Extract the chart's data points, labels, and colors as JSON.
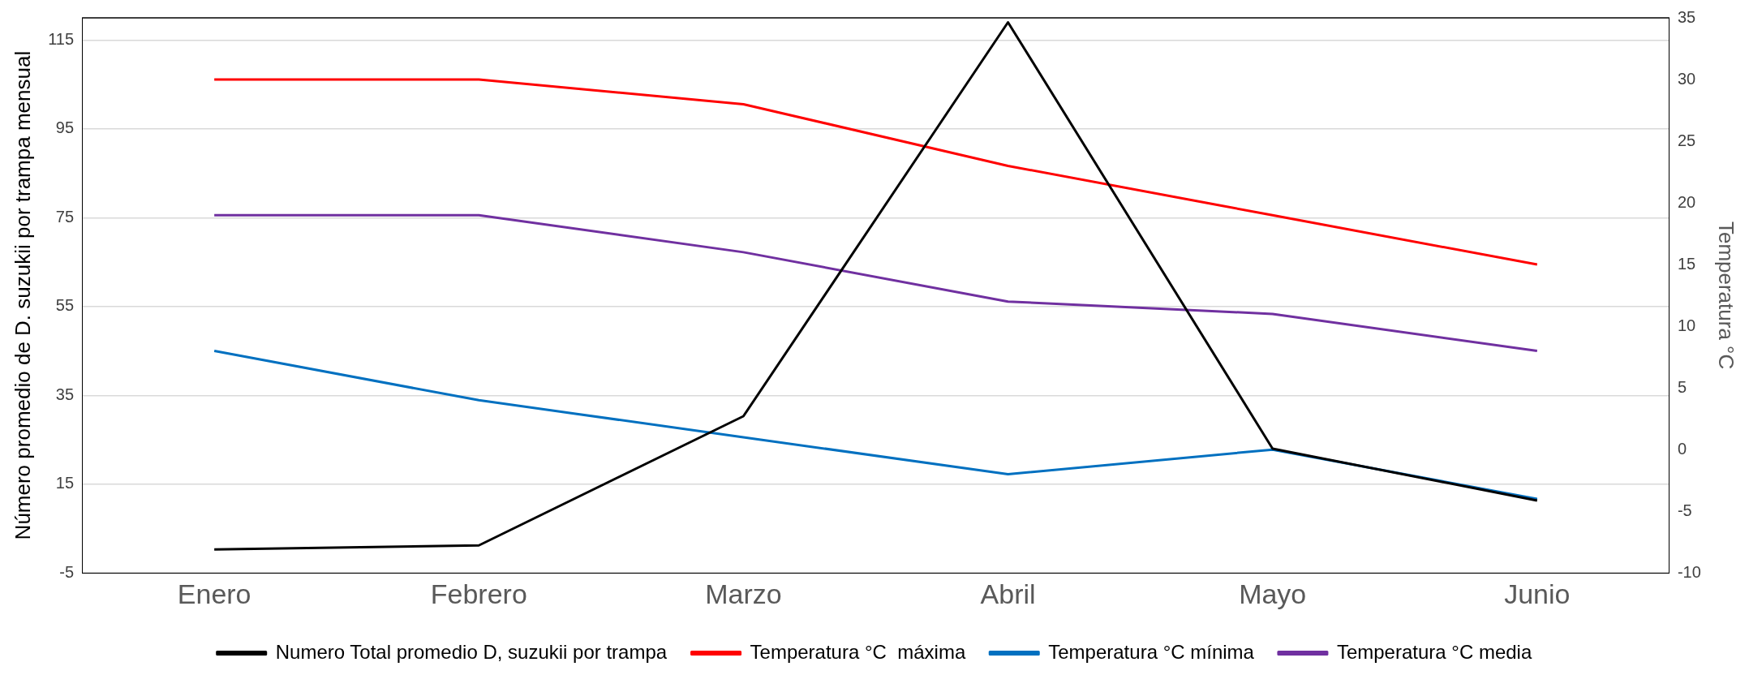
{
  "chart_data": {
    "type": "line",
    "categories": [
      "Enero",
      "Febrero",
      "Marzo",
      "Abril",
      "Mayo",
      "Junio"
    ],
    "ylabel": "Número promedio de D. suzukii por trampa mensual",
    "y2label": "Temperatura °C",
    "ylim": [
      -5,
      120
    ],
    "yticks": [
      -5,
      15,
      35,
      55,
      75,
      95,
      115
    ],
    "y2lim": [
      -10,
      35
    ],
    "y2ticks": [
      -10,
      -5,
      0,
      5,
      10,
      15,
      20,
      25,
      30,
      35
    ],
    "grid": "y",
    "legend": "bottom",
    "marker": "none",
    "line_style": "solid",
    "series": [
      {
        "name": "Numero Total promedio D, suzukii por trampa",
        "color": "#000000",
        "values": [
          0.3,
          1.2,
          30.3,
          119,
          23,
          11.3
        ]
      },
      {
        "name": "Temperatura °C  máxima",
        "color": "#ff0000",
        "axis": "y2",
        "values": [
          30,
          30,
          28,
          23,
          19,
          15
        ]
      },
      {
        "name": "Temperatura °C mínima",
        "color": "#0070c0",
        "axis": "y2",
        "values": [
          8,
          4,
          1,
          -2,
          0,
          -4
        ]
      },
      {
        "name": "Temperatura °C media",
        "color": "#7030a0",
        "axis": "y2",
        "values": [
          19,
          19,
          16,
          12,
          11,
          8
        ]
      }
    ]
  }
}
